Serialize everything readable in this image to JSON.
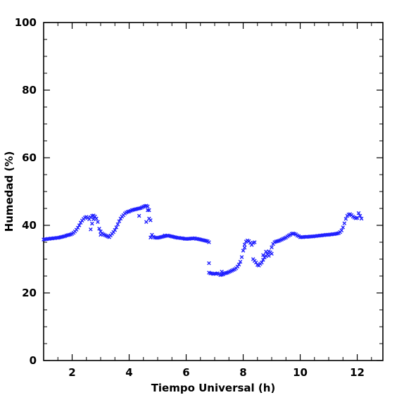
{
  "chart_data": {
    "type": "scatter",
    "xlabel": "Tiempo Universal (h)",
    "ylabel": "Humedad (%)",
    "xlim": [
      1.0,
      12.9
    ],
    "ylim": [
      0,
      100
    ],
    "x_ticks": [
      2,
      4,
      6,
      8,
      10,
      12
    ],
    "y_ticks": [
      0,
      20,
      40,
      60,
      80,
      100
    ],
    "x_tick_labels": [
      "2",
      "4",
      "6",
      "8",
      "10",
      "12"
    ],
    "y_tick_labels": [
      "0",
      "20",
      "40",
      "60",
      "80",
      "100"
    ],
    "grid": false,
    "legend": "none",
    "marker": "x",
    "marker_color": "#1f1fff",
    "series": [
      {
        "x": [
          1.0,
          1.05,
          1.1,
          1.15,
          1.2,
          1.25,
          1.3,
          1.35,
          1.4,
          1.45,
          1.5,
          1.55,
          1.6,
          1.65,
          1.7,
          1.75,
          1.8,
          1.85,
          1.9,
          1.95,
          2.0,
          2.05,
          2.1,
          2.15,
          2.2,
          2.25,
          2.3,
          2.35,
          2.4,
          2.45,
          2.5,
          2.55,
          2.6,
          2.65,
          2.7,
          2.75,
          2.8,
          2.85,
          2.9,
          2.95,
          3.0,
          3.05,
          3.1,
          3.15,
          3.2,
          3.25,
          3.3,
          3.35,
          3.4,
          3.45,
          3.5,
          3.55,
          3.6,
          3.65,
          3.7,
          3.75,
          3.8,
          3.85,
          3.9,
          3.95,
          4.0,
          4.05,
          4.1,
          4.15,
          4.2,
          4.25,
          4.3,
          4.35,
          4.4,
          4.45,
          4.5,
          4.55,
          4.6,
          4.65,
          4.7,
          4.75,
          4.8,
          4.85,
          4.9,
          4.95,
          5.0,
          5.05,
          5.1,
          5.15,
          5.2,
          5.25,
          5.3,
          5.35,
          5.4,
          5.45,
          5.5,
          5.55,
          5.6,
          5.65,
          5.7,
          5.75,
          5.8,
          5.85,
          5.9,
          5.95,
          6.0,
          6.05,
          6.1,
          6.15,
          6.2,
          6.25,
          6.3,
          6.35,
          6.4,
          6.45,
          6.5,
          6.55,
          6.6,
          6.65,
          6.7,
          6.75,
          6.8,
          2.7,
          2.65,
          2.75,
          3.0,
          4.35,
          4.6,
          4.7,
          4.65,
          4.75,
          5.25
        ],
        "y": [
          35.8,
          35.9,
          35.9,
          36.0,
          36.0,
          36.1,
          36.1,
          36.2,
          36.2,
          36.3,
          36.3,
          36.4,
          36.5,
          36.6,
          36.7,
          36.8,
          37.0,
          37.1,
          37.2,
          37.3,
          37.5,
          37.8,
          38.2,
          38.7,
          39.3,
          40.0,
          40.8,
          41.4,
          41.9,
          42.3,
          42.5,
          42.2,
          41.8,
          42.4,
          42.8,
          42.9,
          42.6,
          42.0,
          41.0,
          39.0,
          38.2,
          37.6,
          37.3,
          37.1,
          36.9,
          36.7,
          36.5,
          37.0,
          37.5,
          38.0,
          38.6,
          39.4,
          40.3,
          41.2,
          42.0,
          42.6,
          43.0,
          43.5,
          43.8,
          44.0,
          44.1,
          44.3,
          44.5,
          44.6,
          44.7,
          44.8,
          44.9,
          45.0,
          45.1,
          45.3,
          45.5,
          45.7,
          45.8,
          45.6,
          44.5,
          41.5,
          37.2,
          36.6,
          36.4,
          36.3,
          36.3,
          36.4,
          36.5,
          36.6,
          36.7,
          36.8,
          36.9,
          37.0,
          36.9,
          36.8,
          36.7,
          36.6,
          36.5,
          36.4,
          36.3,
          36.3,
          36.2,
          36.2,
          36.1,
          36.0,
          36.0,
          36.0,
          36.0,
          36.1,
          36.1,
          36.1,
          36.2,
          36.0,
          36.0,
          35.9,
          35.8,
          35.7,
          35.6,
          35.5,
          35.4,
          35.3,
          35.0,
          40.5,
          38.8,
          41.8,
          37.2,
          42.8,
          41.0,
          42.0,
          44.5,
          36.4,
          37.0
        ]
      },
      {
        "x": [
          6.8,
          6.85,
          6.9,
          6.95,
          7.0,
          7.05,
          7.1,
          7.15,
          7.2,
          7.25,
          7.3,
          7.35,
          7.4,
          7.45,
          7.5,
          7.55,
          7.6,
          7.65,
          7.7,
          7.75,
          7.8,
          7.85,
          7.9,
          7.95,
          8.0,
          8.05,
          8.1,
          8.15,
          8.2,
          8.25,
          8.3,
          8.35,
          8.4,
          8.45,
          8.5,
          8.55,
          8.6,
          8.65,
          8.7,
          8.75,
          8.8,
          8.85,
          8.9,
          8.95,
          9.0,
          9.05,
          9.1,
          9.15,
          9.2,
          9.25,
          9.3,
          9.35,
          9.4,
          9.45,
          9.5,
          9.55,
          9.6,
          9.65,
          9.7,
          9.75,
          9.8,
          9.85,
          9.9,
          9.95,
          6.8,
          7.25,
          7.4,
          8.05,
          8.35,
          8.4,
          8.7,
          8.8,
          8.9,
          9.0
        ],
        "y": [
          26.0,
          25.8,
          25.8,
          25.6,
          25.7,
          25.7,
          25.8,
          25.6,
          25.3,
          25.4,
          25.5,
          25.8,
          25.9,
          26.0,
          26.2,
          26.4,
          26.6,
          26.8,
          27.0,
          27.3,
          27.8,
          28.4,
          29.2,
          30.6,
          32.5,
          34.3,
          35.2,
          35.5,
          35.3,
          34.8,
          34.2,
          34.8,
          35.0,
          29.0,
          28.3,
          28.1,
          28.6,
          29.0,
          29.8,
          30.5,
          30.9,
          31.4,
          32.3,
          32.0,
          33.5,
          34.5,
          35.0,
          35.2,
          35.3,
          35.4,
          35.6,
          35.8,
          36.0,
          36.2,
          36.4,
          36.7,
          37.0,
          37.2,
          37.5,
          37.6,
          37.5,
          37.3,
          37.0,
          36.8,
          28.8,
          26.3,
          25.9,
          33.4,
          30.0,
          29.5,
          31.2,
          32.2,
          31.0,
          31.6
        ]
      },
      {
        "x": [
          10.0,
          10.05,
          10.1,
          10.15,
          10.2,
          10.25,
          10.3,
          10.35,
          10.4,
          10.45,
          10.5,
          10.55,
          10.6,
          10.65,
          10.7,
          10.75,
          10.8,
          10.85,
          10.9,
          10.95,
          11.0,
          11.05,
          11.1,
          11.15,
          11.2,
          11.25,
          11.3,
          11.35,
          11.4,
          11.45,
          11.5,
          11.55,
          11.6,
          11.65,
          11.7,
          11.75,
          11.8,
          11.85,
          11.9,
          11.95,
          12.0,
          12.05,
          12.1,
          12.15
        ],
        "y": [
          36.5,
          36.5,
          36.5,
          36.6,
          36.6,
          36.6,
          36.6,
          36.7,
          36.7,
          36.7,
          36.8,
          36.8,
          36.9,
          36.9,
          37.0,
          37.0,
          37.1,
          37.1,
          37.2,
          37.2,
          37.2,
          37.3,
          37.3,
          37.4,
          37.4,
          37.5,
          37.6,
          37.7,
          38.0,
          38.5,
          39.4,
          40.6,
          41.9,
          42.8,
          43.2,
          43.3,
          43.0,
          42.6,
          42.3,
          42.1,
          42.2,
          43.6,
          42.8,
          42.0
        ]
      }
    ]
  }
}
